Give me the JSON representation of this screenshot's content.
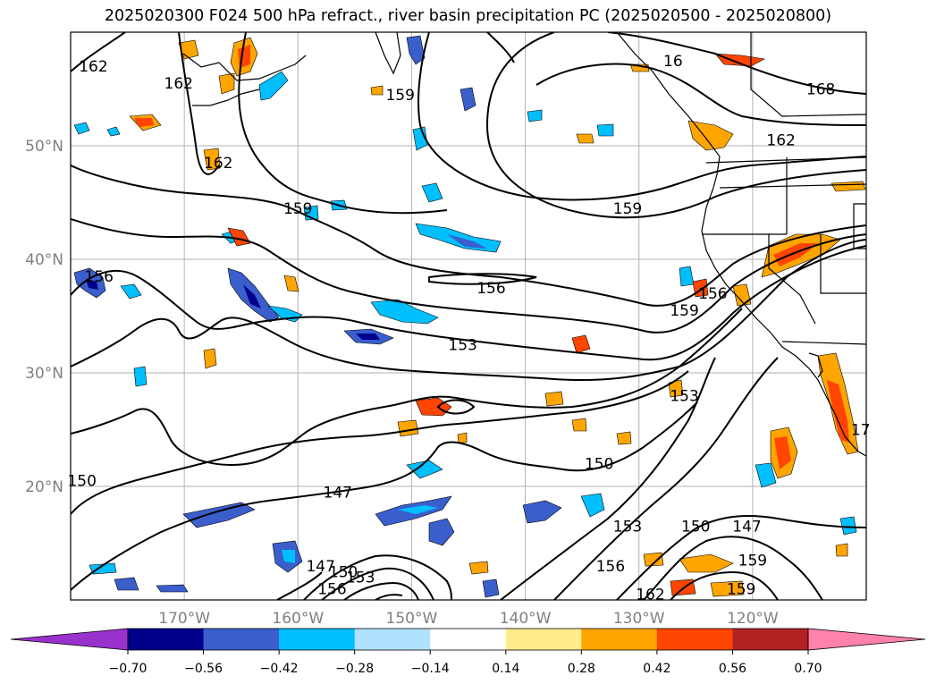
{
  "title": "2025020300 F024 500 hPa refract., river basin precipitation PC (2025020500 - 2025020800)",
  "lat_labels": [
    {
      "lat": 50,
      "text": "50°N"
    },
    {
      "lat": 40,
      "text": "40°N"
    },
    {
      "lat": 30,
      "text": "30°N"
    },
    {
      "lat": 20,
      "text": "20°N"
    }
  ],
  "lon_labels": [
    {
      "lon": -170,
      "text": "170°W"
    },
    {
      "lon": -160,
      "text": "160°W"
    },
    {
      "lon": -150,
      "text": "150°W"
    },
    {
      "lon": -140,
      "text": "140°W"
    },
    {
      "lon": -130,
      "text": "130°W"
    },
    {
      "lon": -120,
      "text": "120°W"
    }
  ],
  "extent": {
    "lon_min": -180,
    "lon_max": -110,
    "lat_min": 10,
    "lat_max": 60
  },
  "colorbar": {
    "bounds": [
      -0.7,
      -0.56,
      -0.42,
      -0.28,
      -0.14,
      0.14,
      0.28,
      0.42,
      0.56,
      0.7
    ],
    "tick_labels": [
      "−0.70",
      "−0.56",
      "−0.42",
      "−0.28",
      "−0.14",
      "0.14",
      "0.28",
      "0.42",
      "0.56",
      "0.70"
    ],
    "under_color": "#9932cc",
    "colors": [
      "#00008b",
      "#3a5fcd",
      "#00bfff",
      "#b0e2ff",
      "#ffffff",
      "#ffec8b",
      "#ffa500",
      "#ff4500",
      "#b22222"
    ],
    "over_color": "#ff82ab"
  },
  "contour_labels": [
    {
      "text": "162",
      "lon": -178.0,
      "lat": 57.0
    },
    {
      "text": "162",
      "lon": -170.5,
      "lat": 55.5
    },
    {
      "text": "162",
      "lon": -167.0,
      "lat": 48.5
    },
    {
      "text": "159",
      "lon": -151.0,
      "lat": 54.5
    },
    {
      "text": "159",
      "lon": -160.0,
      "lat": 44.5
    },
    {
      "text": "156",
      "lon": -177.5,
      "lat": 38.5
    },
    {
      "text": "156",
      "lon": -143.0,
      "lat": 37.5
    },
    {
      "text": "153",
      "lon": -145.5,
      "lat": 32.5
    },
    {
      "text": "150",
      "lon": -179.0,
      "lat": 20.5
    },
    {
      "text": "147",
      "lon": -156.5,
      "lat": 19.5
    },
    {
      "text": "147",
      "lon": -158.0,
      "lat": 13.0
    },
    {
      "text": "150",
      "lon": -156.0,
      "lat": 12.5
    },
    {
      "text": "153",
      "lon": -154.5,
      "lat": 12.0
    },
    {
      "text": "156",
      "lon": -157.0,
      "lat": 11.0
    },
    {
      "text": "159",
      "lon": -126.0,
      "lat": 35.5
    },
    {
      "text": "156",
      "lon": -123.5,
      "lat": 37.0
    },
    {
      "text": "153",
      "lon": -126.0,
      "lat": 28.0
    },
    {
      "text": "150",
      "lon": -133.5,
      "lat": 22.0
    },
    {
      "text": "153",
      "lon": -131.0,
      "lat": 16.5
    },
    {
      "text": "150",
      "lon": -125.0,
      "lat": 16.5
    },
    {
      "text": "147",
      "lon": -120.5,
      "lat": 16.5
    },
    {
      "text": "156",
      "lon": -132.5,
      "lat": 13.0
    },
    {
      "text": "162",
      "lon": -129.0,
      "lat": 10.5
    },
    {
      "text": "159",
      "lon": -120.0,
      "lat": 13.5
    },
    {
      "text": "159",
      "lon": -121.0,
      "lat": 11.0
    },
    {
      "text": "159",
      "lon": -131.0,
      "lat": 44.5
    },
    {
      "text": "162",
      "lon": -117.5,
      "lat": 50.5
    },
    {
      "text": "168",
      "lon": -114.0,
      "lat": 55.0
    },
    {
      "text": "16",
      "lon": -127.0,
      "lat": 57.5
    },
    {
      "text": "17",
      "lon": -110.5,
      "lat": 25.0
    }
  ]
}
